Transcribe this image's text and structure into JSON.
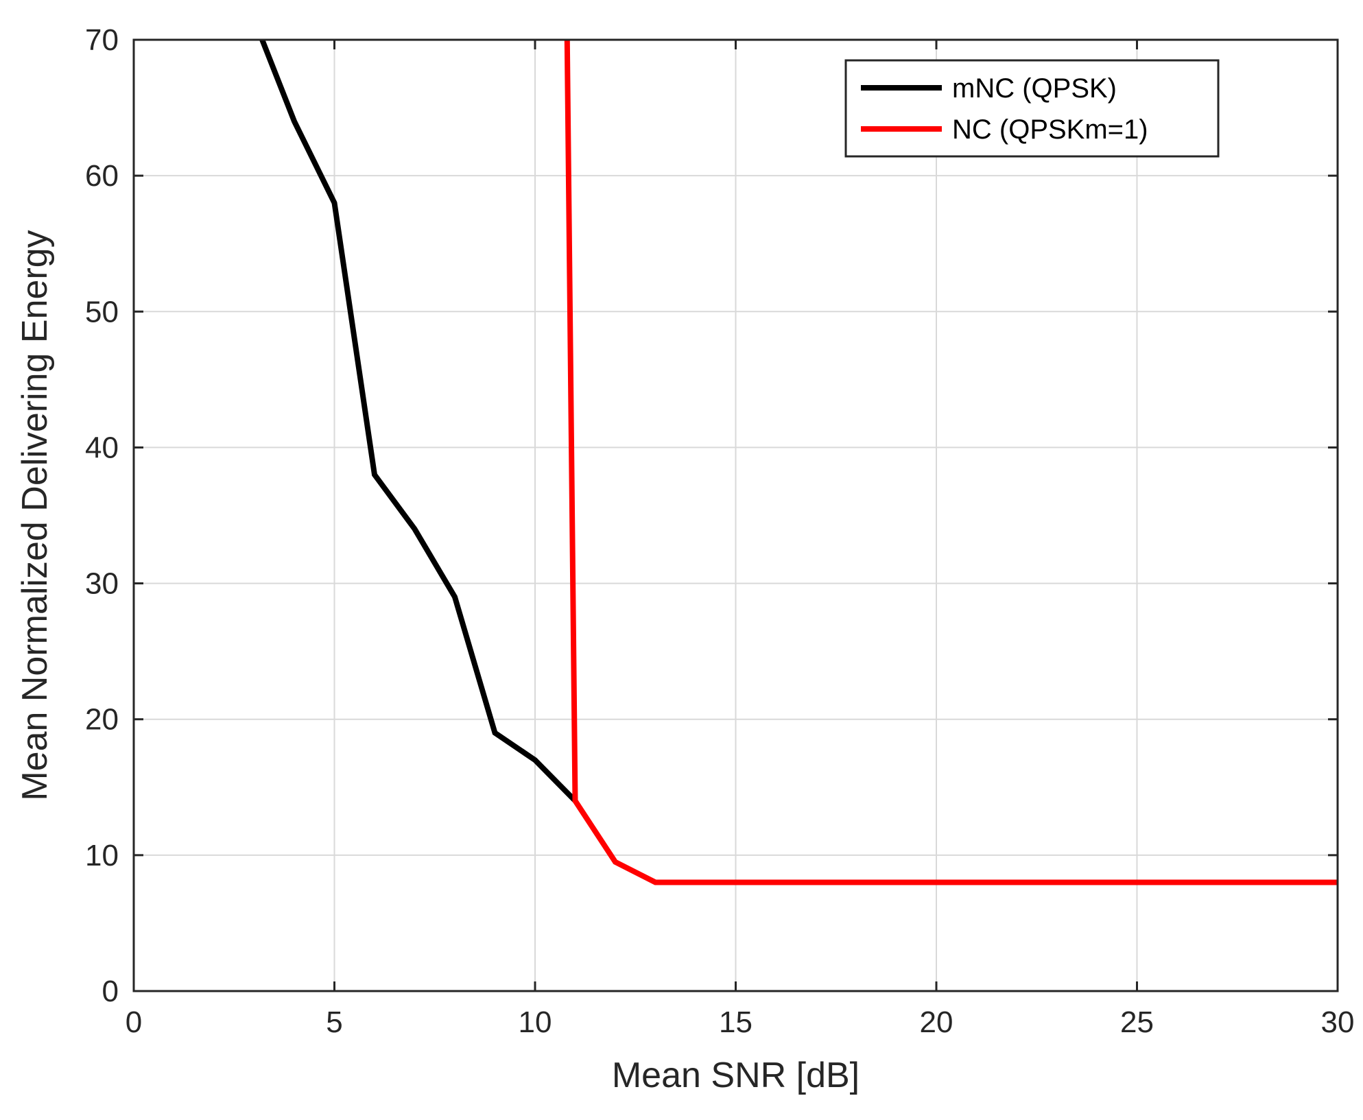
{
  "chart_data": {
    "type": "line",
    "title": "",
    "xlabel": "Mean SNR [dB]",
    "ylabel": "Mean Normalized Delivering Energy",
    "xlim": [
      0,
      30
    ],
    "ylim": [
      0,
      70
    ],
    "xticks": [
      0,
      5,
      10,
      15,
      20,
      25,
      30
    ],
    "yticks": [
      0,
      10,
      20,
      30,
      40,
      50,
      60,
      70
    ],
    "grid": true,
    "legend_position": "top-right",
    "series": [
      {
        "name": "mNC (QPSK)",
        "color": "#000000",
        "x": [
          3.2,
          4,
          5,
          6,
          7,
          8,
          9,
          10,
          11
        ],
        "y": [
          70,
          64,
          58,
          38,
          34,
          29,
          19,
          17,
          14
        ]
      },
      {
        "name": "NC (QPSKm=1)",
        "color": "#ff0000",
        "x": [
          10.8,
          11,
          12,
          13,
          14,
          15,
          16,
          17,
          18,
          19,
          20,
          21,
          22,
          23,
          24,
          25,
          26,
          27,
          28,
          29,
          30
        ],
        "y": [
          70,
          14,
          9.5,
          8,
          8,
          8,
          8,
          8,
          8,
          8,
          8,
          8,
          8,
          8,
          8,
          8,
          8,
          8,
          8,
          8,
          8
        ]
      }
    ]
  }
}
